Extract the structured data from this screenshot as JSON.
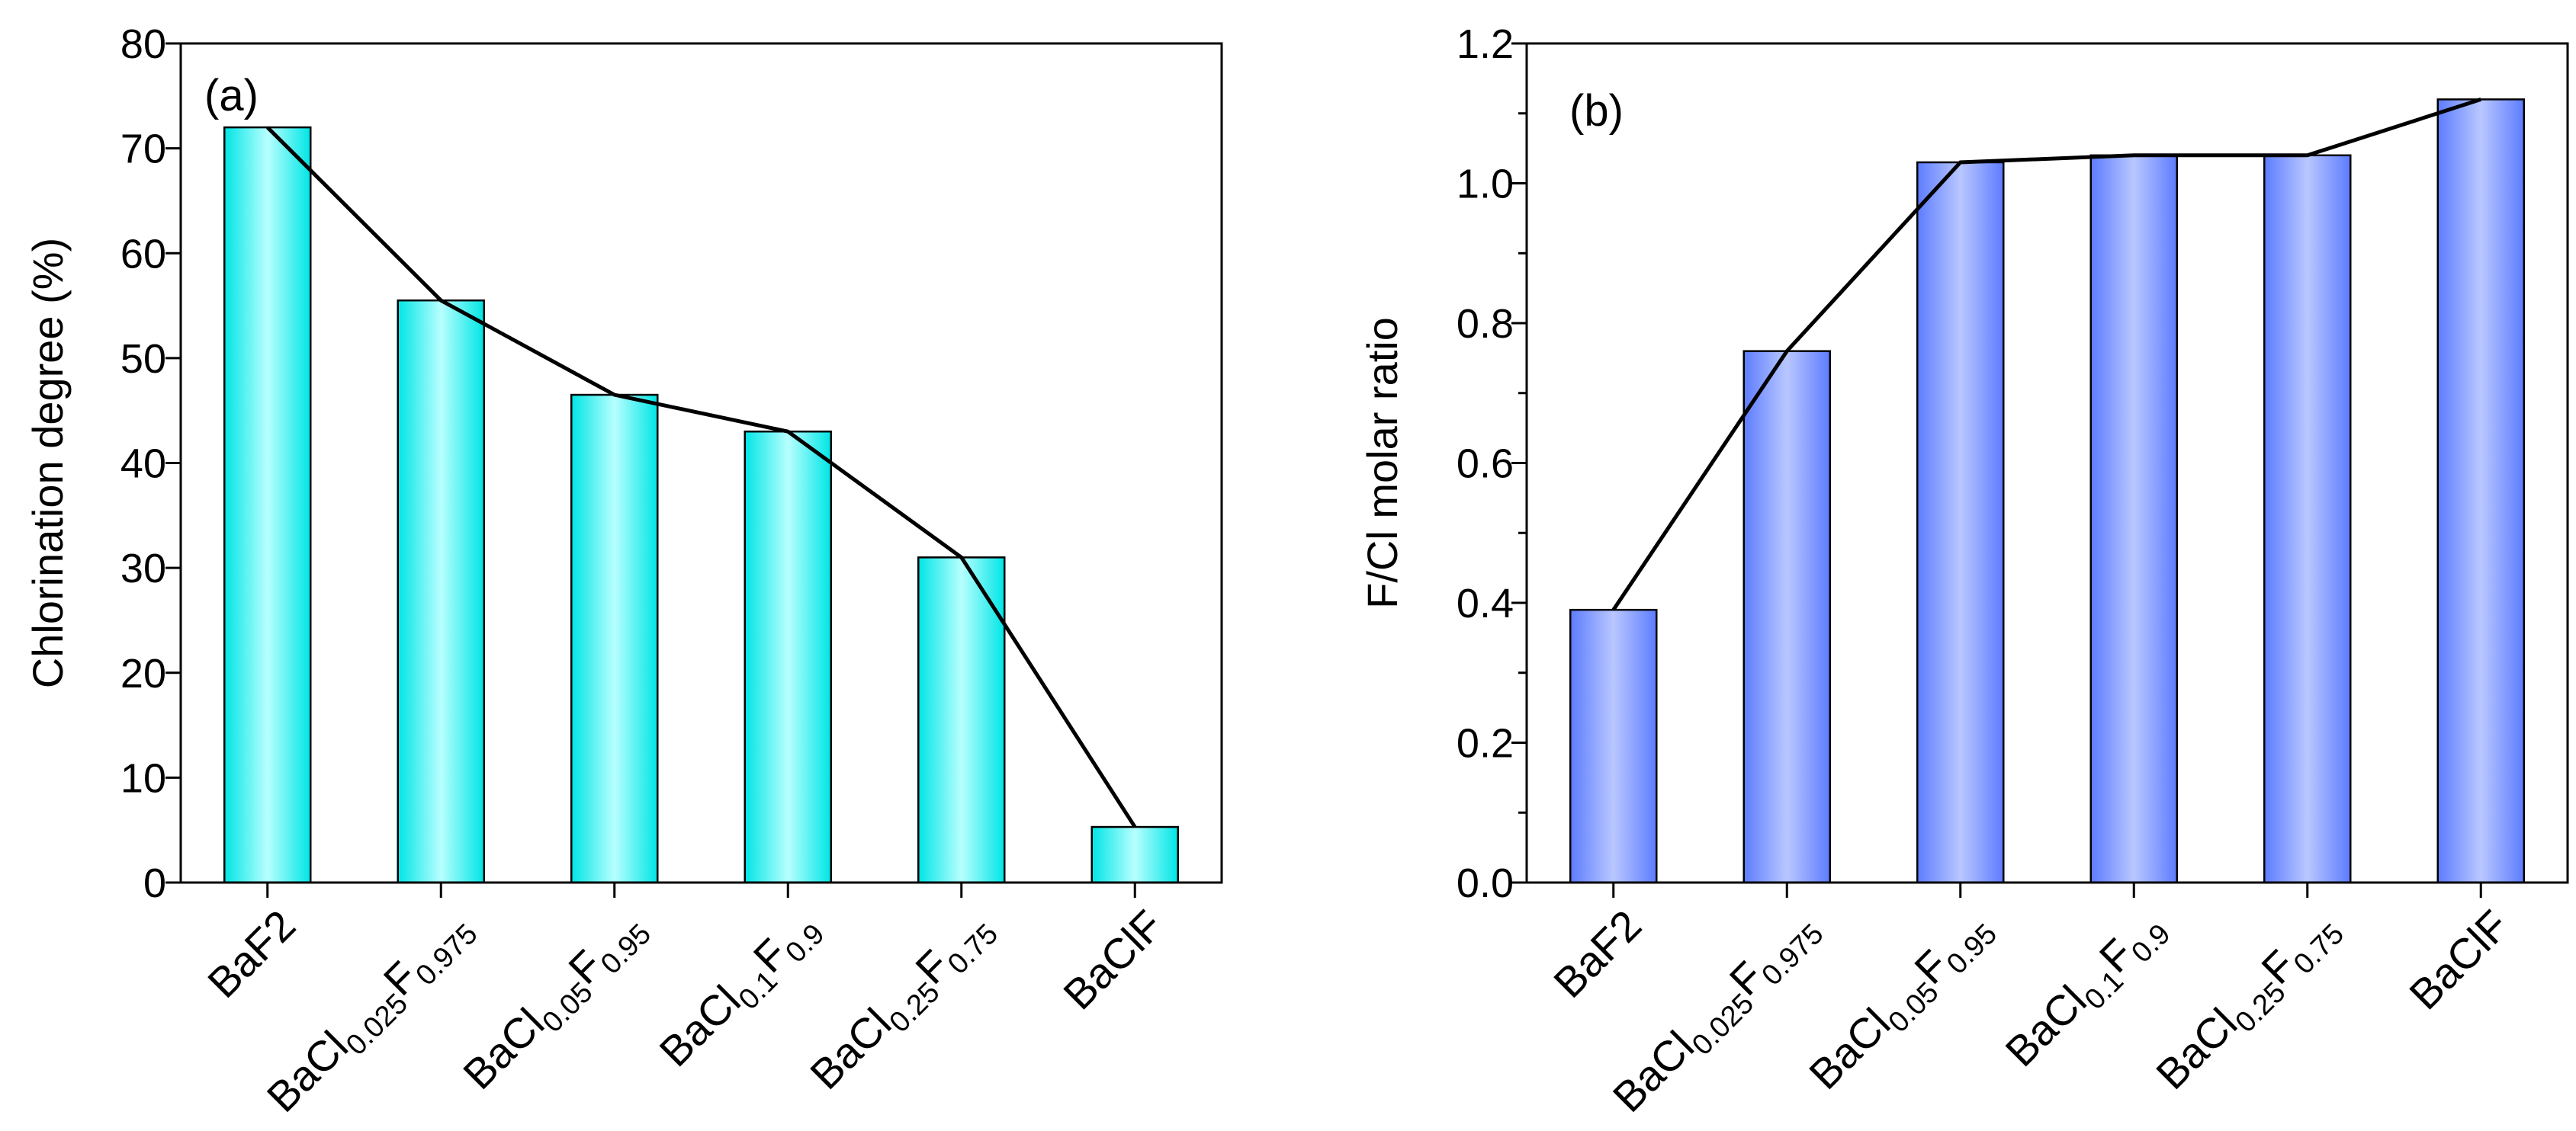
{
  "chart_data": [
    {
      "type": "bar",
      "panel_label": "(a)",
      "ylabel": "Chlorination degree (%)",
      "xlabel": "",
      "ylim": [
        0,
        80
      ],
      "yticks": [
        0,
        10,
        20,
        30,
        40,
        50,
        60,
        70,
        80
      ],
      "ytick_labels": [
        "0",
        "10",
        "20",
        "30",
        "40",
        "50",
        "60",
        "70",
        "80"
      ],
      "categories": [
        {
          "base": "BaF",
          "sub": "2",
          "base2": "",
          "sub2": "",
          "sub_style": "inline"
        },
        {
          "base": "BaCl",
          "sub": "0.025",
          "base2": "F",
          "sub2": "0.975",
          "sub_style": "sub"
        },
        {
          "base": "BaCl",
          "sub": "0.05",
          "base2": "F",
          "sub2": "0.95",
          "sub_style": "sub"
        },
        {
          "base": "BaCl",
          "sub": "0.1",
          "base2": "F",
          "sub2": "0.9",
          "sub_style": "sub"
        },
        {
          "base": "BaCl",
          "sub": "0.25",
          "base2": "F",
          "sub2": "0.75",
          "sub_style": "sub"
        },
        {
          "base": "BaClF",
          "sub": "",
          "base2": "",
          "sub2": "",
          "sub_style": "none"
        }
      ],
      "values": [
        72,
        55.5,
        46.5,
        43,
        31,
        5.3
      ],
      "line_values": [
        72,
        55.5,
        46.5,
        43,
        31,
        5.3
      ],
      "bar_color": "#00e5e5",
      "bar_highlight": "#b8ffff",
      "line_color": "#000000"
    },
    {
      "type": "bar",
      "panel_label": "(b)",
      "ylabel": "F/Cl molar ratio",
      "xlabel": "",
      "ylim": [
        0,
        1.2
      ],
      "yticks": [
        0,
        0.2,
        0.4,
        0.6,
        0.8,
        1.0,
        1.2
      ],
      "ytick_labels": [
        "0.0",
        "0.2",
        "0.4",
        "0.6",
        "0.8",
        "1.0",
        "1.2"
      ],
      "categories": [
        {
          "base": "BaF",
          "sub": "2",
          "base2": "",
          "sub2": "",
          "sub_style": "inline"
        },
        {
          "base": "BaCl",
          "sub": "0.025",
          "base2": "F",
          "sub2": "0.975",
          "sub_style": "sub"
        },
        {
          "base": "BaCl",
          "sub": "0.05",
          "base2": "F",
          "sub2": "0.95",
          "sub_style": "sub"
        },
        {
          "base": "BaCl",
          "sub": "0.1",
          "base2": "F",
          "sub2": "0.9",
          "sub_style": "sub"
        },
        {
          "base": "BaCl",
          "sub": "0.25",
          "base2": "F",
          "sub2": "0.75",
          "sub_style": "sub"
        },
        {
          "base": "BaClF",
          "sub": "",
          "base2": "",
          "sub2": "",
          "sub_style": "none"
        }
      ],
      "values": [
        0.39,
        0.76,
        1.03,
        1.04,
        1.04,
        1.12
      ],
      "line_values": [
        0.39,
        0.76,
        1.03,
        1.04,
        1.04,
        1.12
      ],
      "bar_color": "#5d7cff",
      "bar_highlight": "#b9c7ff",
      "line_color": "#000000"
    }
  ]
}
